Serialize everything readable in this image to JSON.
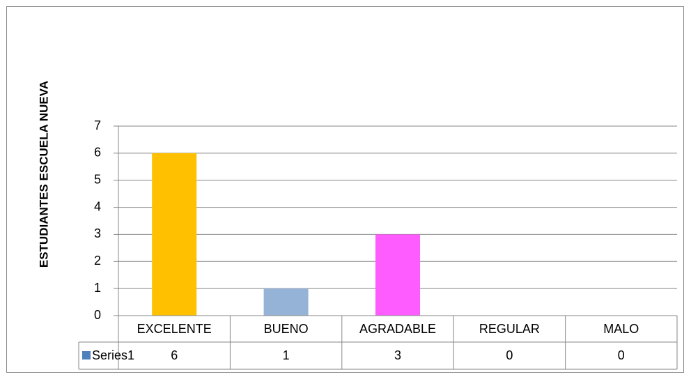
{
  "chart_data": {
    "type": "bar",
    "ylabel": "ESTUDIANTES ESCUELA NUEVA",
    "categories": [
      "EXCELENTE",
      "BUENO",
      "AGRADABLE",
      "REGULAR",
      "MALO"
    ],
    "series": [
      {
        "name": "Series1",
        "color": "#4f81bd",
        "values": [
          6,
          1,
          3,
          0,
          0
        ]
      }
    ],
    "bar_colors": [
      "#ffc000",
      "#95b3d7",
      "#ff5cff",
      "#4f81bd",
      "#4f81bd"
    ],
    "ylim": [
      0,
      7
    ],
    "yticks": [
      0,
      1,
      2,
      3,
      4,
      5,
      6,
      7
    ],
    "grid": true
  }
}
